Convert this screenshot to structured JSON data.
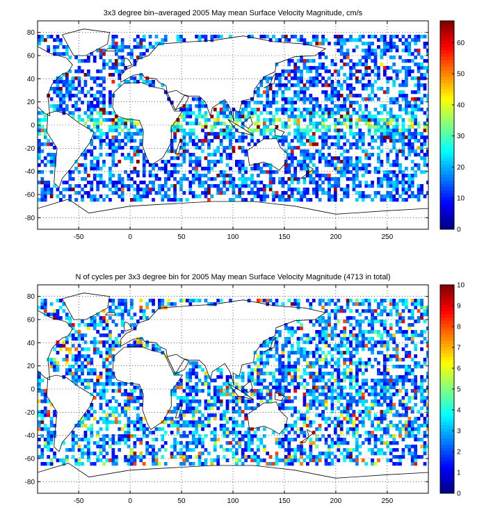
{
  "chart_data": [
    {
      "type": "heatmap",
      "title": "3x3 degree bin–averaged 2005 May mean Surface Velocity Magnitude, cm/s",
      "xlabel": "",
      "ylabel": "",
      "xlim": [
        -90,
        290
      ],
      "ylim": [
        -90,
        90
      ],
      "x_ticks": [
        -50,
        0,
        50,
        100,
        150,
        200,
        250
      ],
      "y_ticks": [
        80,
        60,
        40,
        20,
        0,
        -20,
        -40,
        -60,
        -80
      ],
      "x_tick_labels": [
        "-50",
        "0",
        "50",
        "100",
        "150",
        "200",
        "250"
      ],
      "y_tick_labels": [
        "80",
        "60",
        "40",
        "20",
        "0",
        "-20",
        "-40",
        "-60",
        "-80"
      ],
      "grid": "dotted",
      "bin_size_deg": 3,
      "color_scale": {
        "min": 0,
        "max": 67,
        "colormap": "jet",
        "ticks": [
          0,
          10,
          20,
          30,
          40,
          50,
          60
        ],
        "tick_labels": [
          "0",
          "10",
          "20",
          "30",
          "40",
          "50",
          "60"
        ]
      },
      "background_map": "world coastlines",
      "seed": 20050
    },
    {
      "type": "heatmap",
      "title": "N of cycles per 3x3 degree bin for 2005 May mean Surface Velocity Magnitude (4713 in total)",
      "xlabel": "",
      "ylabel": "",
      "xlim": [
        -90,
        290
      ],
      "ylim": [
        -90,
        90
      ],
      "x_ticks": [
        -50,
        0,
        50,
        100,
        150,
        200,
        250
      ],
      "y_ticks": [
        80,
        60,
        40,
        20,
        0,
        -20,
        -40,
        -60,
        -80
      ],
      "x_tick_labels": [
        "-50",
        "0",
        "50",
        "100",
        "150",
        "200",
        "250"
      ],
      "y_tick_labels": [
        "80",
        "60",
        "40",
        "20",
        "0",
        "-20",
        "-40",
        "-60",
        "-80"
      ],
      "grid": "dotted",
      "bin_size_deg": 3,
      "total_cycles": 4713,
      "color_scale": {
        "min": 0,
        "max": 10,
        "colormap": "jet",
        "ticks": [
          0,
          1,
          2,
          3,
          4,
          5,
          6,
          7,
          8,
          9,
          10
        ],
        "tick_labels": [
          "0",
          "1",
          "2",
          "3",
          "4",
          "5",
          "6",
          "7",
          "8",
          "9",
          "10"
        ]
      },
      "background_map": "world coastlines",
      "seed": 47130
    }
  ]
}
